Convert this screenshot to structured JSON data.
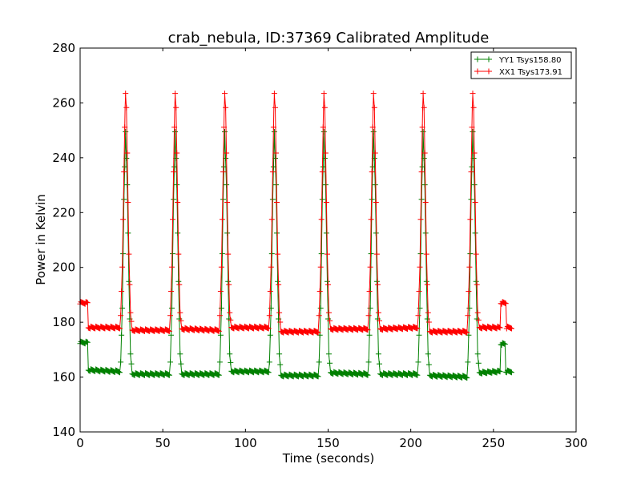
{
  "chart_data": {
    "type": "line",
    "title": "crab_nebula, ID:37369 Calibrated Amplitude",
    "xlabel": "Time (seconds)",
    "ylabel": "Power in Kelvin",
    "xlim": [
      0,
      300
    ],
    "ylim": [
      140,
      280
    ],
    "xticks": [
      0,
      50,
      100,
      150,
      200,
      250,
      300
    ],
    "yticks": [
      140,
      160,
      180,
      200,
      220,
      240,
      260,
      280
    ],
    "grid": false,
    "legend_position": "top-right",
    "marker": "+",
    "series": [
      {
        "name": "YY1 Tsys158.80",
        "color": "#008000",
        "points": [
          [
            0,
            172.5
          ],
          [
            4.5,
            172.5
          ],
          [
            5,
            162.5
          ],
          [
            24,
            162
          ],
          [
            24.5,
            165
          ],
          [
            25.5,
            185
          ],
          [
            26.5,
            225
          ],
          [
            27.5,
            249
          ],
          [
            28.5,
            230
          ],
          [
            29.5,
            195
          ],
          [
            30.5,
            168
          ],
          [
            31.5,
            161
          ],
          [
            54,
            161
          ],
          [
            54.5,
            165
          ],
          [
            55.5,
            185
          ],
          [
            56.5,
            225
          ],
          [
            57.5,
            249
          ],
          [
            58.5,
            230
          ],
          [
            59.5,
            195
          ],
          [
            60.5,
            168
          ],
          [
            61.5,
            161
          ],
          [
            84,
            161
          ],
          [
            84.5,
            165
          ],
          [
            85.5,
            185
          ],
          [
            86.5,
            225
          ],
          [
            87.5,
            249
          ],
          [
            88.5,
            230
          ],
          [
            89.5,
            195
          ],
          [
            90.5,
            168
          ],
          [
            91.5,
            162
          ],
          [
            114,
            162
          ],
          [
            114.5,
            165
          ],
          [
            115.5,
            185
          ],
          [
            116.5,
            225
          ],
          [
            117.5,
            249
          ],
          [
            118.5,
            230
          ],
          [
            119.5,
            195
          ],
          [
            120.5,
            168
          ],
          [
            121.5,
            160.5
          ],
          [
            144,
            160.5
          ],
          [
            144.5,
            165
          ],
          [
            145.5,
            185
          ],
          [
            146.5,
            225
          ],
          [
            147.5,
            249
          ],
          [
            148.5,
            230
          ],
          [
            149.5,
            195
          ],
          [
            150.5,
            168
          ],
          [
            151.5,
            161.5
          ],
          [
            174,
            161
          ],
          [
            174.5,
            165
          ],
          [
            175.5,
            185
          ],
          [
            176.5,
            225
          ],
          [
            177.5,
            249
          ],
          [
            178.5,
            230
          ],
          [
            179.5,
            195
          ],
          [
            180.5,
            168
          ],
          [
            181.5,
            161
          ],
          [
            204,
            161
          ],
          [
            204.5,
            165
          ],
          [
            205.5,
            185
          ],
          [
            206.5,
            225
          ],
          [
            207.5,
            249
          ],
          [
            208.5,
            230
          ],
          [
            209.5,
            195
          ],
          [
            210.5,
            168
          ],
          [
            211.5,
            160.5
          ],
          [
            234,
            160
          ],
          [
            234.5,
            165
          ],
          [
            235.5,
            185
          ],
          [
            236.5,
            225
          ],
          [
            237.5,
            249
          ],
          [
            238.5,
            230
          ],
          [
            239.5,
            195
          ],
          [
            240.5,
            168
          ],
          [
            241.5,
            161.5
          ],
          [
            254,
            162
          ],
          [
            254.5,
            172
          ],
          [
            257,
            172
          ],
          [
            257.5,
            162
          ],
          [
            261,
            162
          ]
        ]
      },
      {
        "name": "XX1 Tsys173.91",
        "color": "#ff0000",
        "points": [
          [
            0,
            187
          ],
          [
            4.5,
            187
          ],
          [
            5,
            178
          ],
          [
            24,
            178
          ],
          [
            24.5,
            182
          ],
          [
            25.5,
            200
          ],
          [
            26.5,
            235
          ],
          [
            27.2,
            258
          ],
          [
            27.5,
            263
          ],
          [
            28,
            258
          ],
          [
            28.7,
            235
          ],
          [
            29.5,
            205
          ],
          [
            30.5,
            183
          ],
          [
            31.5,
            177
          ],
          [
            54,
            177
          ],
          [
            54.5,
            182
          ],
          [
            55.5,
            200
          ],
          [
            56.5,
            235
          ],
          [
            57.2,
            258
          ],
          [
            57.5,
            263
          ],
          [
            58,
            258
          ],
          [
            58.7,
            235
          ],
          [
            59.5,
            205
          ],
          [
            60.5,
            183
          ],
          [
            61.5,
            177.5
          ],
          [
            84,
            177
          ],
          [
            84.5,
            182
          ],
          [
            85.5,
            200
          ],
          [
            86.5,
            235
          ],
          [
            87.2,
            258
          ],
          [
            87.5,
            263
          ],
          [
            88,
            258
          ],
          [
            88.7,
            235
          ],
          [
            89.5,
            205
          ],
          [
            90.5,
            183
          ],
          [
            91.5,
            178
          ],
          [
            114,
            178
          ],
          [
            114.5,
            182
          ],
          [
            115.5,
            200
          ],
          [
            116.5,
            235
          ],
          [
            117.2,
            258
          ],
          [
            117.5,
            263
          ],
          [
            118,
            258
          ],
          [
            118.7,
            235
          ],
          [
            119.5,
            205
          ],
          [
            120.5,
            183
          ],
          [
            121.5,
            176.5
          ],
          [
            144,
            176.5
          ],
          [
            144.5,
            182
          ],
          [
            145.5,
            200
          ],
          [
            146.5,
            235
          ],
          [
            147.2,
            258
          ],
          [
            147.5,
            263
          ],
          [
            148,
            258
          ],
          [
            148.7,
            235
          ],
          [
            149.5,
            205
          ],
          [
            150.5,
            183
          ],
          [
            151.5,
            177.5
          ],
          [
            174,
            177.5
          ],
          [
            174.5,
            182
          ],
          [
            175.5,
            200
          ],
          [
            176.5,
            235
          ],
          [
            177.2,
            258
          ],
          [
            177.5,
            263
          ],
          [
            178,
            258
          ],
          [
            178.7,
            235
          ],
          [
            179.5,
            205
          ],
          [
            180.5,
            183
          ],
          [
            181.5,
            177.5
          ],
          [
            204,
            178
          ],
          [
            204.5,
            182
          ],
          [
            205.5,
            200
          ],
          [
            206.5,
            235
          ],
          [
            207.2,
            258
          ],
          [
            207.5,
            263
          ],
          [
            208,
            258
          ],
          [
            208.7,
            235
          ],
          [
            209.5,
            205
          ],
          [
            210.5,
            183
          ],
          [
            211.5,
            176.5
          ],
          [
            234,
            176.5
          ],
          [
            234.5,
            182
          ],
          [
            235.5,
            200
          ],
          [
            236.5,
            235
          ],
          [
            237.2,
            258
          ],
          [
            237.5,
            263
          ],
          [
            238,
            258
          ],
          [
            238.7,
            235
          ],
          [
            239.5,
            205
          ],
          [
            240.5,
            183
          ],
          [
            241.5,
            178
          ],
          [
            254,
            178
          ],
          [
            254.5,
            187
          ],
          [
            257.5,
            187
          ],
          [
            258,
            178
          ],
          [
            261,
            178
          ]
        ]
      }
    ]
  }
}
